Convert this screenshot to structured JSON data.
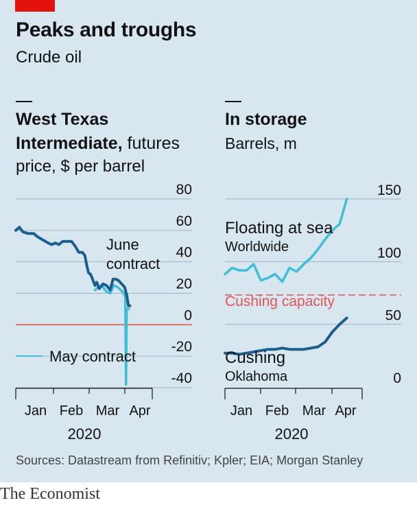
{
  "header": {
    "title": "Peaks and troughs",
    "subtitle": "Crude oil",
    "source": "Sources: Datastream from Refinitiv; Kpler; EIA; Morgan Stanley",
    "footer": "The Economist"
  },
  "colors": {
    "background": "#d7e6ef",
    "brand_red": "#e3120b",
    "dark_series": "#1a5e8e",
    "light_series": "#3dbfd9",
    "zero_line": "#e3564a",
    "capacity_line": "#e05555",
    "grid": "#9eb4c0"
  },
  "chart_data": [
    {
      "type": "line",
      "title": "West Texas Intermediate, futures price, $ per barrel",
      "title_lines": [
        "West Texas",
        "Intermediate,",
        " futures",
        "price, $ per barrel"
      ],
      "xlabel": "2020",
      "x_ticks": [
        "Jan",
        "Feb",
        "Mar",
        "Apr"
      ],
      "y_ticks": [
        "80",
        "60",
        "40",
        "20",
        "0",
        "-20",
        "-40"
      ],
      "ylim": [
        -40,
        80
      ],
      "grid": true,
      "series": [
        {
          "name": "June contract",
          "color": "#1a5e8e",
          "points": [
            [
              0.0,
              60
            ],
            [
              0.1,
              62
            ],
            [
              0.2,
              59
            ],
            [
              0.35,
              58
            ],
            [
              0.5,
              58
            ],
            [
              0.6,
              56
            ],
            [
              0.75,
              54
            ],
            [
              0.9,
              52
            ],
            [
              1.0,
              51
            ],
            [
              1.1,
              52
            ],
            [
              1.2,
              51
            ],
            [
              1.3,
              53
            ],
            [
              1.45,
              53
            ],
            [
              1.55,
              53
            ],
            [
              1.65,
              50
            ],
            [
              1.75,
              46
            ],
            [
              1.85,
              46
            ],
            [
              1.92,
              44
            ],
            [
              1.97,
              38
            ],
            [
              2.02,
              33
            ],
            [
              2.08,
              32
            ],
            [
              2.15,
              28
            ],
            [
              2.2,
              25
            ],
            [
              2.25,
              27
            ],
            [
              2.32,
              23
            ],
            [
              2.42,
              26
            ],
            [
              2.52,
              25
            ],
            [
              2.62,
              22
            ],
            [
              2.7,
              29
            ],
            [
              2.78,
              29
            ],
            [
              2.86,
              28
            ],
            [
              2.94,
              26
            ],
            [
              3.02,
              24
            ],
            [
              3.08,
              19
            ],
            [
              3.13,
              12
            ],
            [
              3.17,
              12
            ]
          ]
        },
        {
          "name": "May contract",
          "color": "#3dbfd9",
          "points": [
            [
              2.2,
              22
            ],
            [
              2.3,
              24
            ],
            [
              2.42,
              24
            ],
            [
              2.52,
              21
            ],
            [
              2.62,
              20
            ],
            [
              2.72,
              25
            ],
            [
              2.82,
              24
            ],
            [
              2.92,
              22
            ],
            [
              3.0,
              20
            ],
            [
              3.04,
              18
            ],
            [
              3.06,
              -38
            ],
            [
              3.08,
              10
            ],
            [
              3.14,
              10
            ]
          ]
        }
      ],
      "annotations": {
        "june": [
          "June",
          "contract"
        ],
        "may": "May contract"
      }
    },
    {
      "type": "line",
      "title": "In storage",
      "subtitle": "Barrels, m",
      "xlabel": "2020",
      "x_ticks": [
        "Jan",
        "Feb",
        "Mar",
        "Apr"
      ],
      "y_ticks": [
        "150",
        "100",
        "50",
        "0"
      ],
      "ylim": [
        0,
        150
      ],
      "grid": true,
      "reference_line": {
        "value": 75,
        "label": "Cushing capacity"
      },
      "series": [
        {
          "name": "Floating at sea",
          "sublabel": "Worldwide",
          "color": "#3dbfd9",
          "points": [
            [
              0.0,
              90
            ],
            [
              0.2,
              95
            ],
            [
              0.4,
              93
            ],
            [
              0.6,
              93
            ],
            [
              0.8,
              98
            ],
            [
              1.0,
              85
            ],
            [
              1.2,
              87
            ],
            [
              1.4,
              90
            ],
            [
              1.6,
              84
            ],
            [
              1.8,
              95
            ],
            [
              2.0,
              92
            ],
            [
              2.2,
              98
            ],
            [
              2.4,
              103
            ],
            [
              2.6,
              110
            ],
            [
              2.8,
              118
            ],
            [
              3.0,
              125
            ],
            [
              3.2,
              130
            ],
            [
              3.4,
              150
            ]
          ]
        },
        {
          "name": "Cushing",
          "sublabel": "Oklahoma",
          "color": "#1a5e8e",
          "points": [
            [
              0.0,
              27
            ],
            [
              0.2,
              27
            ],
            [
              0.4,
              26
            ],
            [
              0.6,
              27
            ],
            [
              0.8,
              28
            ],
            [
              1.0,
              29
            ],
            [
              1.2,
              30
            ],
            [
              1.4,
              30
            ],
            [
              1.6,
              31
            ],
            [
              1.8,
              30
            ],
            [
              2.0,
              30
            ],
            [
              2.2,
              30
            ],
            [
              2.4,
              31
            ],
            [
              2.6,
              32
            ],
            [
              2.8,
              36
            ],
            [
              3.0,
              44
            ],
            [
              3.2,
              50
            ],
            [
              3.4,
              55
            ]
          ]
        }
      ]
    }
  ]
}
